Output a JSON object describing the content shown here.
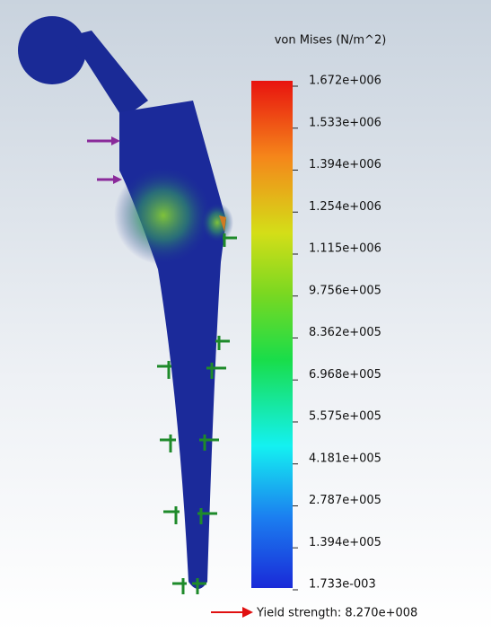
{
  "legend": {
    "title": "von Mises (N/m^2)",
    "ticks": [
      "1.672e+006",
      "1.533e+006",
      "1.394e+006",
      "1.254e+006",
      "1.115e+006",
      "9.756e+005",
      "8.362e+005",
      "6.968e+005",
      "5.575e+005",
      "4.181e+005",
      "2.787e+005",
      "1.394e+005",
      "1.733e-003"
    ]
  },
  "yield": {
    "label": "Yield strength: 8.270e+008"
  }
}
